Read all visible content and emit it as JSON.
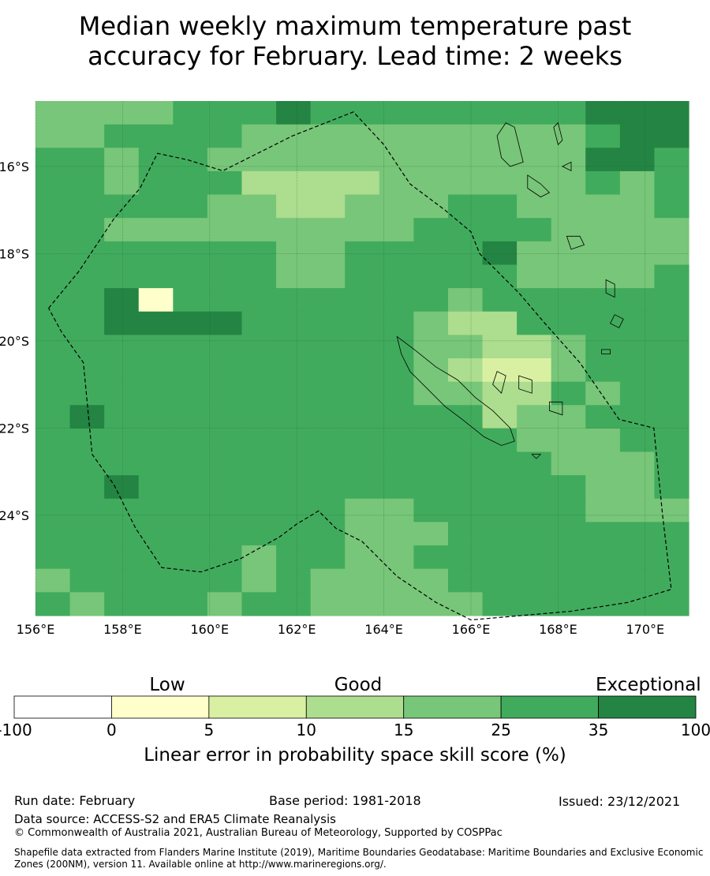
{
  "title_line1": "Median weekly maximum temperature past",
  "title_line2": "accuracy for February. Lead time: 2 weeks",
  "map": {
    "lon_range": [
      156,
      171
    ],
    "lat_range": [
      -26.3,
      -14.5
    ],
    "lon_ticks": [
      "156°E",
      "158°E",
      "160°E",
      "162°E",
      "164°E",
      "166°E",
      "168°E",
      "170°E"
    ],
    "lon_tick_values": [
      156,
      158,
      160,
      162,
      164,
      166,
      168,
      170
    ],
    "lat_ticks": [
      "16°S",
      "18°S",
      "20°S",
      "22°S",
      "24°S"
    ],
    "lat_tick_values": [
      -16,
      -18,
      -20,
      -22,
      -24
    ],
    "grid": true,
    "cell_size_deg": 0.833,
    "grid_rows": [
      "2222333433333333444",
      "2233332222222222344",
      "3323322222222222443",
      "3323331111222222323",
      "3333322112223322223",
      "3322222222233332222",
      "3333333223333422222",
      "3333333223333322223",
      "3345333333332333333",
      "3344443333321133333",
      "3333333333322112333",
      "3333333333321002333",
      "3333333333322113233",
      "3433333333333122333",
      "3333333333333322233",
      "3333333333333332223",
      "3343333333333333223",
      "3333333332233333222",
      "3333333332223333333",
      "3333332332233333333",
      "2333332322223333333",
      "3233323322222333333"
    ],
    "colors": [
      "#d9f0a3",
      "#addd8e",
      "#78c679",
      "#41ab5d",
      "#238443",
      "#ffffcc"
    ],
    "eez_boundary": [
      [
        156.3,
        -19.25
      ],
      [
        157.0,
        -18.4
      ],
      [
        157.8,
        -17.2
      ],
      [
        158.4,
        -16.5
      ],
      [
        158.8,
        -15.7
      ],
      [
        159.5,
        -15.85
      ],
      [
        160.3,
        -16.1
      ],
      [
        161.9,
        -15.3
      ],
      [
        163.3,
        -14.75
      ],
      [
        164.0,
        -15.5
      ],
      [
        164.6,
        -16.4
      ],
      [
        165.4,
        -17.0
      ],
      [
        166.0,
        -17.5
      ],
      [
        166.2,
        -18.0
      ],
      [
        167.1,
        -18.9
      ],
      [
        167.7,
        -19.6
      ],
      [
        168.5,
        -20.5
      ],
      [
        169.4,
        -21.8
      ],
      [
        170.2,
        -22.0
      ],
      [
        170.4,
        -24.0
      ],
      [
        170.6,
        -25.7
      ],
      [
        169.6,
        -26.0
      ],
      [
        168.3,
        -26.2
      ],
      [
        166.0,
        -26.4
      ],
      [
        165.2,
        -26.0
      ],
      [
        164.3,
        -25.4
      ],
      [
        163.5,
        -24.6
      ],
      [
        162.9,
        -24.3
      ],
      [
        162.5,
        -23.9
      ],
      [
        162.0,
        -24.2
      ],
      [
        161.6,
        -24.5
      ],
      [
        160.7,
        -25.0
      ],
      [
        159.8,
        -25.3
      ],
      [
        158.9,
        -25.2
      ],
      [
        158.3,
        -24.3
      ],
      [
        157.8,
        -23.3
      ],
      [
        157.3,
        -22.6
      ],
      [
        157.1,
        -20.5
      ],
      [
        156.6,
        -19.8
      ],
      [
        156.3,
        -19.25
      ]
    ],
    "islands": [
      [
        [
          164.3,
          -19.9
        ],
        [
          164.7,
          -20.2
        ],
        [
          165.2,
          -20.6
        ],
        [
          165.7,
          -20.9
        ],
        [
          166.1,
          -21.3
        ],
        [
          166.5,
          -21.6
        ],
        [
          166.9,
          -22.0
        ],
        [
          167.0,
          -22.3
        ],
        [
          166.7,
          -22.4
        ],
        [
          166.3,
          -22.2
        ],
        [
          165.8,
          -21.8
        ],
        [
          165.4,
          -21.5
        ],
        [
          165.0,
          -21.1
        ],
        [
          164.6,
          -20.7
        ],
        [
          164.4,
          -20.3
        ]
      ],
      [
        [
          166.8,
          -15.0
        ],
        [
          167.0,
          -15.1
        ],
        [
          167.1,
          -15.5
        ],
        [
          167.2,
          -15.9
        ],
        [
          166.9,
          -16.0
        ],
        [
          166.7,
          -15.8
        ],
        [
          166.6,
          -15.3
        ]
      ],
      [
        [
          167.3,
          -16.2
        ],
        [
          167.6,
          -16.4
        ],
        [
          167.8,
          -16.6
        ],
        [
          167.6,
          -16.7
        ],
        [
          167.3,
          -16.5
        ]
      ],
      [
        [
          167.9,
          -15.1
        ],
        [
          168.0,
          -15.0
        ],
        [
          168.1,
          -15.4
        ],
        [
          168.0,
          -15.5
        ]
      ],
      [
        [
          168.1,
          -16.0
        ],
        [
          168.3,
          -15.9
        ],
        [
          168.3,
          -16.1
        ]
      ],
      [
        [
          168.2,
          -17.6
        ],
        [
          168.5,
          -17.6
        ],
        [
          168.6,
          -17.8
        ],
        [
          168.3,
          -17.9
        ]
      ],
      [
        [
          169.1,
          -18.6
        ],
        [
          169.3,
          -18.7
        ],
        [
          169.3,
          -19.0
        ],
        [
          169.1,
          -18.9
        ]
      ],
      [
        [
          169.3,
          -19.4
        ],
        [
          169.5,
          -19.5
        ],
        [
          169.4,
          -19.7
        ],
        [
          169.2,
          -19.6
        ]
      ],
      [
        [
          166.6,
          -20.7
        ],
        [
          166.8,
          -20.8
        ],
        [
          166.7,
          -21.2
        ],
        [
          166.5,
          -21.0
        ]
      ],
      [
        [
          167.1,
          -20.8
        ],
        [
          167.4,
          -20.9
        ],
        [
          167.4,
          -21.2
        ],
        [
          167.1,
          -21.1
        ]
      ],
      [
        [
          167.8,
          -21.4
        ],
        [
          168.1,
          -21.4
        ],
        [
          168.1,
          -21.7
        ],
        [
          167.8,
          -21.6
        ]
      ],
      [
        [
          167.4,
          -22.6
        ],
        [
          167.6,
          -22.6
        ],
        [
          167.5,
          -22.7
        ]
      ],
      [
        [
          169.0,
          -20.2
        ],
        [
          169.2,
          -20.2
        ],
        [
          169.2,
          -20.3
        ],
        [
          169.0,
          -20.3
        ]
      ]
    ]
  },
  "colorbar": {
    "boundaries": [
      "-100",
      "0",
      "5",
      "10",
      "15",
      "25",
      "35",
      "100"
    ],
    "colors": [
      "#ffffff",
      "#ffffcc",
      "#d9f0a3",
      "#addd8e",
      "#78c679",
      "#41ab5d",
      "#238443"
    ],
    "categories": [
      "Low",
      "Good",
      "Exceptional"
    ],
    "label": "Linear error in probability space skill score (%)"
  },
  "footer": {
    "run_date": "Run date: February",
    "base_period": "Base period: 1981-2018",
    "issued": "Issued: 23/12/2021",
    "data_source": "Data source: ACCESS-S2 and ERA5 Climate Reanalysis",
    "copyright": "© Commonwealth of Australia 2021, Australian Bureau of Meteorology, Supported by COSPPac",
    "shapefile": "Shapefile data extracted from Flanders Marine Institute (2019), Maritime Boundaries Geodatabase: Maritime Boundaries and Exclusive Economic Zones (200NM), version 11. Available online at http://www.marineregions.org/."
  }
}
